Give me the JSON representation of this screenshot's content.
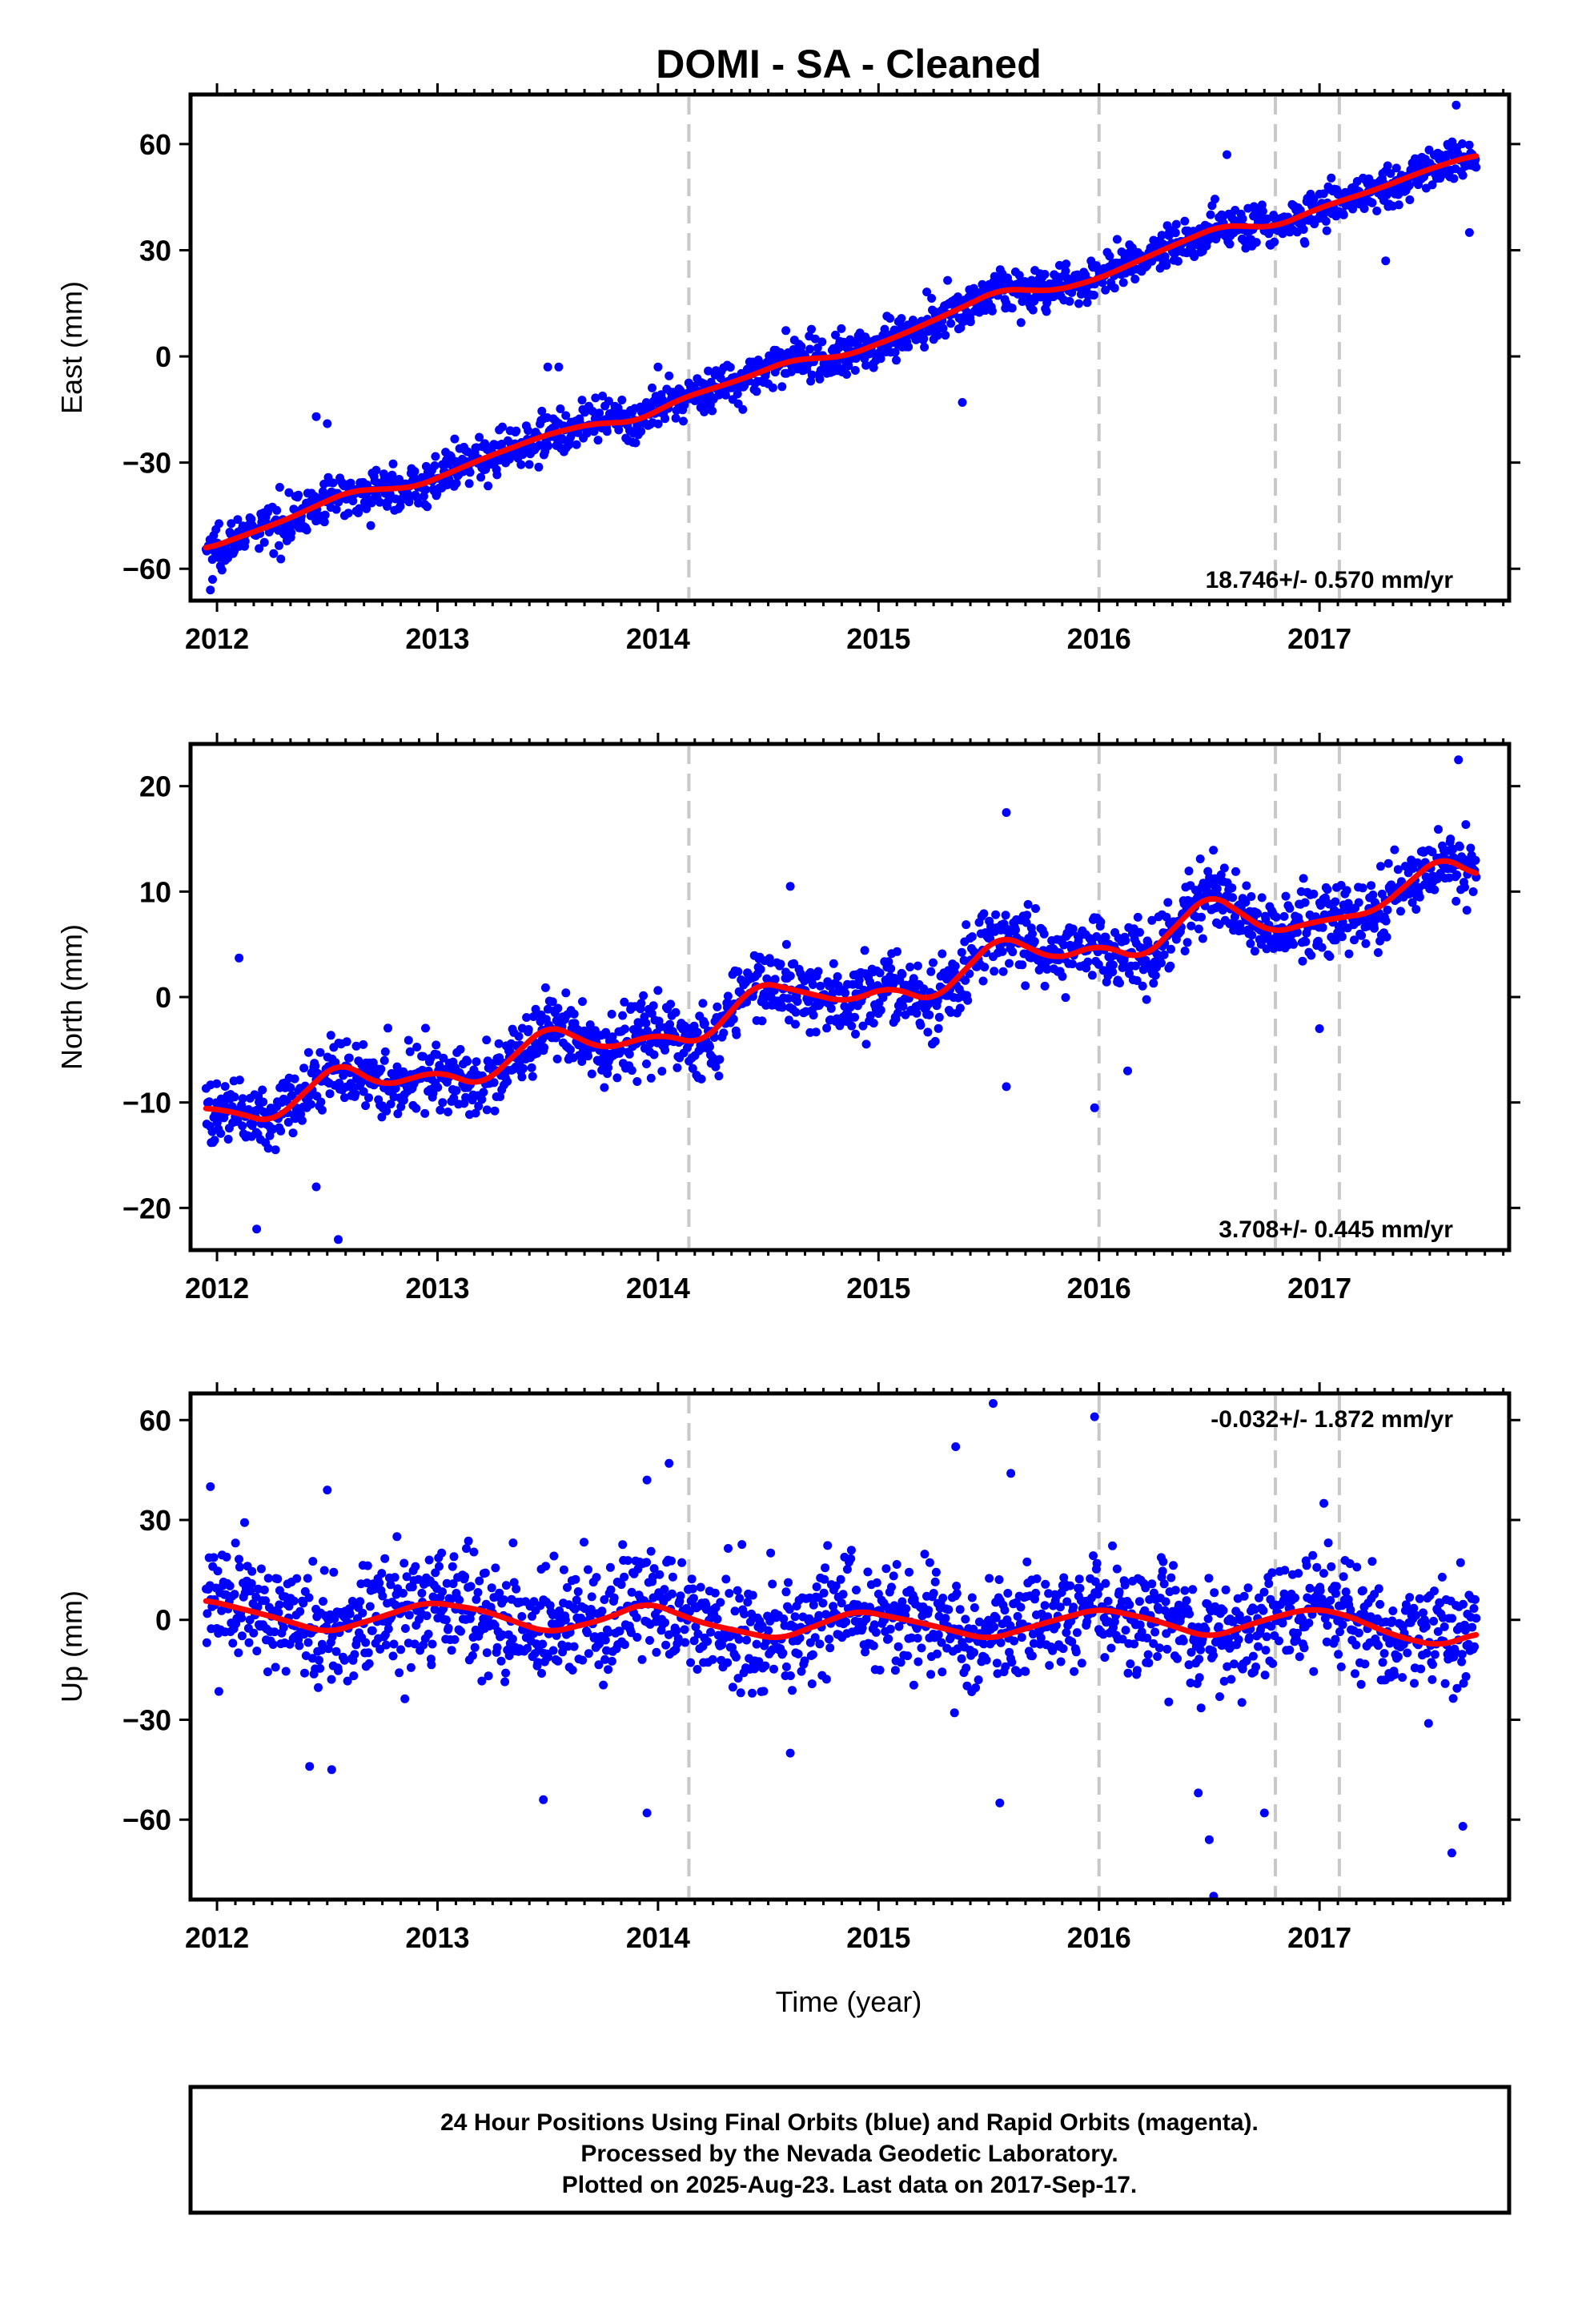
{
  "title": "DOMI  - SA - Cleaned",
  "xlabel": "Time (year)",
  "footer": {
    "line1": "24 Hour Positions Using Final Orbits (blue) and Rapid Orbits (magenta).",
    "line2": "Processed by the Nevada Geodetic Laboratory.",
    "line3": "Plotted on 2025-Aug-23. Last data on 2017-Sep-17."
  },
  "colors": {
    "points": "#0000ff",
    "fit": "#ff0000",
    "event_lines": "#c8c8c8",
    "frame": "#000000"
  },
  "chart_data": [
    {
      "type": "scatter",
      "component": "east",
      "ylabel": "East (mm)",
      "rate_text": "18.746+/- 0.570 mm/yr",
      "xlim": [
        2011.88,
        2017.86
      ],
      "ylim": [
        -69,
        74
      ],
      "yticks": [
        -60,
        -30,
        0,
        30,
        60
      ],
      "xticks": [
        2012,
        2013,
        2014,
        2015,
        2016,
        2017
      ],
      "event_lines_x": [
        2014.14,
        2016.0,
        2016.8,
        2017.09
      ],
      "series": [
        {
          "name": "Final Orbits (blue)",
          "type": "scatter",
          "x_range": [
            2011.95,
            2017.71
          ],
          "trend": {
            "t0": 2011.95,
            "value_at_t0": -54.5,
            "rate_mm_per_yr": 18.746
          },
          "scatter_sd_mm": 3.0,
          "outliers": [
            [
              2011.97,
              -66
            ],
            [
              2011.98,
              -63
            ],
            [
              2012.45,
              -17
            ],
            [
              2012.5,
              -19
            ],
            [
              2013.5,
              -3
            ],
            [
              2013.55,
              -3
            ],
            [
              2014.0,
              -3
            ],
            [
              2015.38,
              -13
            ],
            [
              2016.58,
              57
            ],
            [
              2017.3,
              27
            ],
            [
              2017.62,
              71
            ],
            [
              2017.68,
              35
            ]
          ]
        },
        {
          "name": "fit",
          "type": "line",
          "x": [
            2011.95,
            2012.3,
            2012.6,
            2012.9,
            2013.2,
            2013.5,
            2013.7,
            2013.9,
            2014.1,
            2014.4,
            2014.6,
            2014.85,
            2015.1,
            2015.35,
            2015.55,
            2015.8,
            2016.0,
            2016.25,
            2016.55,
            2016.8,
            2017.0,
            2017.25,
            2017.5,
            2017.71
          ],
          "y": [
            -54.5,
            -46.5,
            -38,
            -37,
            -29,
            -22,
            -19,
            -18.5,
            -12,
            -6,
            -1,
            0,
            6,
            13,
            19,
            18.5,
            22,
            29,
            37,
            36.5,
            42,
            47,
            53,
            57
          ]
        }
      ]
    },
    {
      "type": "scatter",
      "component": "north",
      "ylabel": "North (mm)",
      "rate_text": "3.708+/- 0.445 mm/yr",
      "xlim": [
        2011.88,
        2017.86
      ],
      "ylim": [
        -24,
        24
      ],
      "yticks": [
        -20,
        -10,
        0,
        10,
        20
      ],
      "xticks": [
        2012,
        2013,
        2014,
        2015,
        2016,
        2017
      ],
      "event_lines_x": [
        2014.14,
        2016.0,
        2016.8,
        2017.09
      ],
      "series": [
        {
          "name": "Final Orbits (blue)",
          "type": "scatter",
          "x_range": [
            2011.95,
            2017.71
          ],
          "trend": {
            "t0": 2011.95,
            "value_at_t0": -11,
            "rate_mm_per_yr": 3.708
          },
          "scatter_sd_mm": 1.6,
          "outliers": [
            [
              2012.1,
              3.7
            ],
            [
              2012.18,
              -22
            ],
            [
              2012.55,
              -23
            ],
            [
              2012.45,
              -18
            ],
            [
              2014.6,
              10.5
            ],
            [
              2015.58,
              17.5
            ],
            [
              2015.58,
              -8.5
            ],
            [
              2015.98,
              -10.5
            ],
            [
              2016.13,
              -7
            ],
            [
              2017.63,
              22.5
            ],
            [
              2017.0,
              -3
            ]
          ]
        },
        {
          "name": "fit",
          "type": "line",
          "x": [
            2011.95,
            2012.1,
            2012.25,
            2012.55,
            2012.75,
            2013.0,
            2013.2,
            2013.5,
            2013.75,
            2014.0,
            2014.2,
            2014.45,
            2014.65,
            2014.85,
            2015.05,
            2015.25,
            2015.55,
            2015.8,
            2016.0,
            2016.2,
            2016.5,
            2016.78,
            2016.95,
            2017.08,
            2017.25,
            2017.55,
            2017.71
          ],
          "y": [
            -10.5,
            -11,
            -12,
            -6,
            -8.5,
            -7,
            -8.5,
            -2.5,
            -5,
            -3.5,
            -4.5,
            1.5,
            0.5,
            -0.5,
            1,
            -0.5,
            6,
            3.5,
            5,
            3.5,
            10,
            6,
            7,
            7.5,
            8,
            13.5,
            11.5
          ]
        }
      ]
    },
    {
      "type": "scatter",
      "component": "up",
      "ylabel": "Up (mm)",
      "rate_text": "-0.032+/- 1.872 mm/yr",
      "xlim": [
        2011.88,
        2017.86
      ],
      "ylim": [
        -84,
        68
      ],
      "yticks": [
        -60,
        -30,
        0,
        30,
        60
      ],
      "xticks": [
        2012,
        2013,
        2014,
        2015,
        2016,
        2017
      ],
      "event_lines_x": [
        2014.14,
        2016.0,
        2016.8,
        2017.09
      ],
      "series": [
        {
          "name": "Final Orbits (blue)",
          "type": "scatter",
          "x_range": [
            2011.95,
            2017.71
          ],
          "trend": {
            "t0": 2011.95,
            "value_at_t0": 0,
            "rate_mm_per_yr": -0.032
          },
          "scatter_sd_mm": 8.5,
          "outliers": [
            [
              2011.97,
              40
            ],
            [
              2012.5,
              39
            ],
            [
              2012.42,
              -44
            ],
            [
              2012.52,
              -45
            ],
            [
              2013.48,
              -54
            ],
            [
              2013.95,
              42
            ],
            [
              2014.05,
              47
            ],
            [
              2013.95,
              -58
            ],
            [
              2014.6,
              -40
            ],
            [
              2015.35,
              52
            ],
            [
              2015.52,
              65
            ],
            [
              2015.6,
              44
            ],
            [
              2015.55,
              -55
            ],
            [
              2015.98,
              61
            ],
            [
              2016.45,
              -52
            ],
            [
              2016.5,
              -66
            ],
            [
              2016.52,
              -83
            ],
            [
              2016.75,
              -58
            ],
            [
              2017.02,
              35
            ],
            [
              2017.6,
              -70
            ],
            [
              2017.65,
              -62
            ]
          ]
        },
        {
          "name": "fit",
          "type": "line",
          "x": [
            2011.95,
            2012.25,
            2012.5,
            2012.75,
            2012.95,
            2013.2,
            2013.5,
            2013.75,
            2013.95,
            2014.2,
            2014.55,
            2014.9,
            2015.2,
            2015.5,
            2015.75,
            2016.0,
            2016.25,
            2016.5,
            2016.75,
            2016.95,
            2017.1,
            2017.35,
            2017.55,
            2017.71
          ],
          "y": [
            6,
            1,
            -4,
            1,
            5.5,
            3,
            -4,
            0,
            5.5,
            -1,
            -6,
            3,
            -1,
            -6,
            -1,
            3.5,
            0,
            -5.5,
            0,
            3.5,
            2,
            -5,
            -8,
            -4
          ]
        }
      ]
    }
  ]
}
